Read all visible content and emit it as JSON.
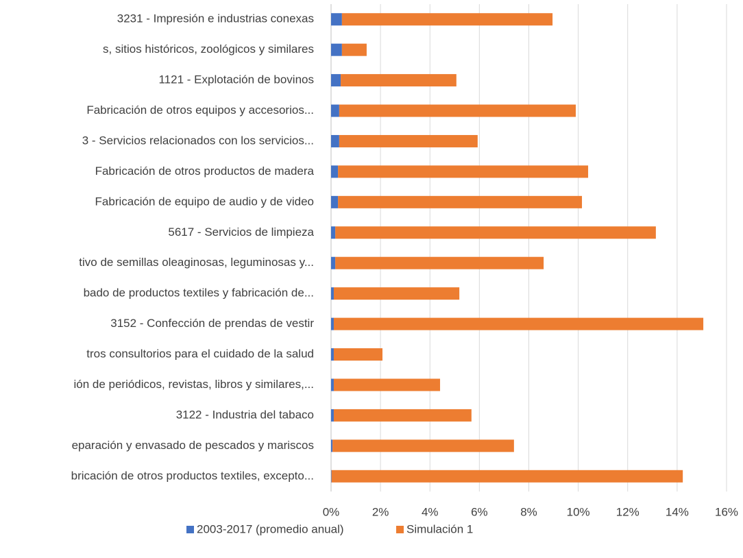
{
  "chart_data": {
    "type": "stacked_barh",
    "categories": [
      "3231 - Impresión e industrias conexas",
      "s, sitios históricos, zoológicos y similares",
      "1121 - Explotación de bovinos",
      "Fabricación de otros equipos y accesorios...",
      "3 - Servicios relacionados con los servicios...",
      "Fabricación de otros productos de madera",
      "Fabricación de equipo de audio y de video",
      "5617 - Servicios de limpieza",
      "tivo de semillas oleaginosas, leguminosas y...",
      "bado de productos textiles y fabricación de...",
      "3152 - Confección de prendas de vestir",
      "tros consultorios para el cuidado de la salud",
      "ión de periódicos, revistas, libros y similares,...",
      "3122 - Industria del tabaco",
      "eparación y envasado de pescados y mariscos",
      "bricación de otros productos textiles, excepto..."
    ],
    "series": [
      {
        "name": "2003-2017 (promedio anual)",
        "color": "#4472c4",
        "values": [
          0.44,
          0.44,
          0.39,
          0.33,
          0.33,
          0.28,
          0.28,
          0.17,
          0.17,
          0.11,
          0.11,
          0.11,
          0.11,
          0.11,
          0.06,
          0.02
        ]
      },
      {
        "name": "Simulación 1",
        "color": "#ed7d31",
        "values": [
          8.52,
          1.0,
          4.68,
          9.57,
          5.6,
          10.12,
          9.87,
          12.97,
          8.43,
          5.08,
          14.95,
          1.97,
          4.3,
          5.57,
          7.34,
          14.21
        ]
      }
    ],
    "xlim": [
      0,
      16
    ],
    "xticks": [
      {
        "value": 0,
        "label": "0%"
      },
      {
        "value": 2,
        "label": "2%"
      },
      {
        "value": 4,
        "label": "4%"
      },
      {
        "value": 6,
        "label": "6%"
      },
      {
        "value": 8,
        "label": "8%"
      },
      {
        "value": 10,
        "label": "10%"
      },
      {
        "value": 12,
        "label": "12%"
      },
      {
        "value": 14,
        "label": "14%"
      },
      {
        "value": 16,
        "label": "16%"
      }
    ],
    "grid": true,
    "legend": "bottom"
  }
}
